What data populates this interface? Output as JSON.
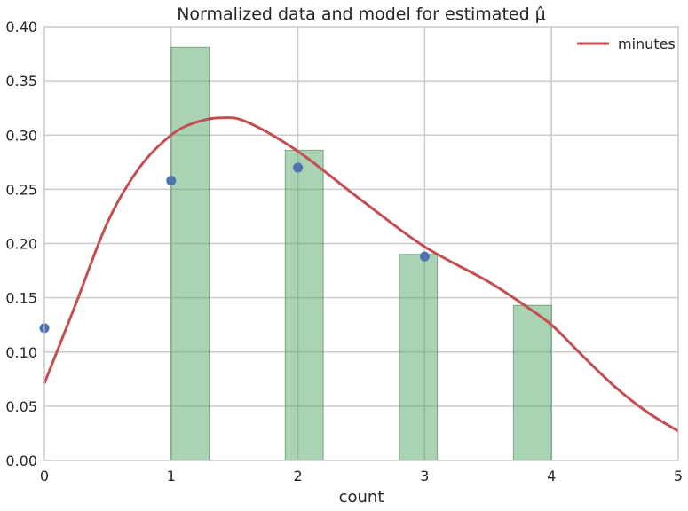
{
  "chart_data": {
    "type": "bar",
    "title": "Normalized data and model for estimated μ̂",
    "xlabel": "count",
    "ylabel": "",
    "xlim": [
      0,
      5
    ],
    "ylim": [
      0,
      0.4
    ],
    "xticks": [
      "0",
      "1",
      "2",
      "3",
      "4",
      "5"
    ],
    "yticks": [
      "0.00",
      "0.05",
      "0.10",
      "0.15",
      "0.20",
      "0.25",
      "0.30",
      "0.35",
      "0.40"
    ],
    "grid": true,
    "legend_position": "top-right",
    "colors": {
      "bars": "#55a868",
      "points": "#4c72b0",
      "line": "#c44e52"
    },
    "bars": [
      {
        "x0": 1.0,
        "x1": 1.3,
        "value": 0.381
      },
      {
        "x0": 1.9,
        "x1": 2.2,
        "value": 0.286
      },
      {
        "x0": 2.8,
        "x1": 3.1,
        "value": 0.19
      },
      {
        "x0": 3.7,
        "x1": 4.0,
        "value": 0.143
      }
    ],
    "points": [
      {
        "x": 0,
        "y": 0.122
      },
      {
        "x": 1,
        "y": 0.258
      },
      {
        "x": 2,
        "y": 0.27
      },
      {
        "x": 3,
        "y": 0.188
      }
    ],
    "line_series": {
      "name": "minutes",
      "x": [
        0,
        0.25,
        0.5,
        0.75,
        1.0,
        1.2,
        1.4,
        1.6,
        2.0,
        2.5,
        3.0,
        3.5,
        3.8,
        4.0,
        4.25,
        4.5,
        4.75,
        5.0
      ],
      "y": [
        0.071,
        0.145,
        0.22,
        0.27,
        0.3,
        0.312,
        0.316,
        0.312,
        0.285,
        0.24,
        0.197,
        0.165,
        0.142,
        0.125,
        0.096,
        0.068,
        0.045,
        0.027
      ]
    }
  }
}
